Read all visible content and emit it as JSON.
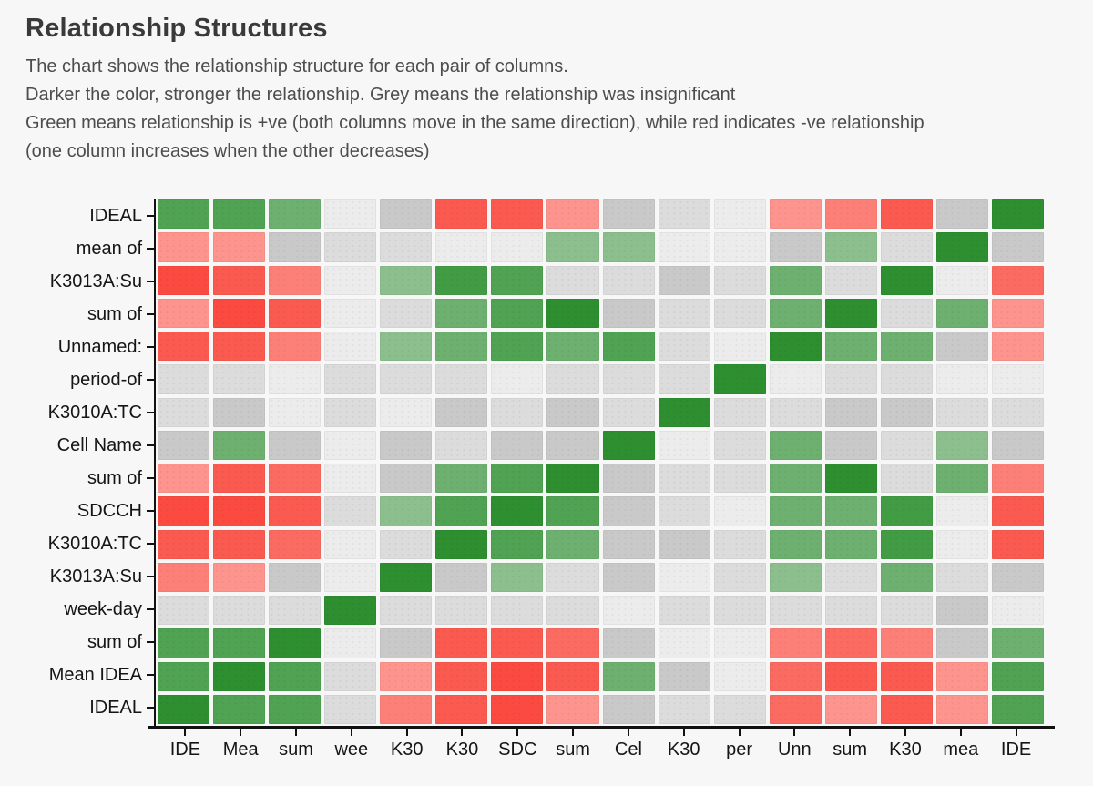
{
  "title": "Relationship Structures",
  "description_lines": [
    "The chart shows the relationship structure for each pair of columns.",
    "Darker the color, stronger the relationship. Grey means the relationship was insignificant",
    "Green means relationship is +ve (both columns move in the same direction), while red indicates -ve relationship",
    "(one column increases when the other decreases)"
  ],
  "chart_data": {
    "type": "heatmap",
    "title": "Relationship Structures",
    "rows": [
      "IDEAL",
      "mean of",
      "K3013A:Su",
      "sum of",
      "Unnamed:",
      "period-of",
      "K3010A:TC",
      "Cell Name",
      "sum of",
      "SDCCH",
      "K3010A:TC",
      "K3013A:Su",
      "week-day",
      "sum of",
      "Mean IDEA",
      "IDEAL"
    ],
    "columns": [
      "IDE",
      "Mea",
      "sum",
      "wee",
      "K30",
      "K30",
      "SDC",
      "sum",
      "Cel",
      "K30",
      "per",
      "Unn",
      "sum",
      "K30",
      "mea",
      "IDE"
    ],
    "legend": {
      "green": "positive relationship (stronger = darker)",
      "red": "negative relationship (stronger = darker)",
      "grey": "insignificant relationship"
    },
    "palette": {
      "g5": "#2e8f31",
      "g4": "#429c44",
      "g3": "#4fa352",
      "g2": "#6db06f",
      "g1": "#8cbf8d",
      "n0": "#ececec",
      "n1": "#dcdcdc",
      "n2": "#c9c9c9",
      "r1": "#fd948d",
      "r2": "#fc8078",
      "r3": "#fb6b61",
      "r4": "#fb5a50",
      "r5": "#fb4a40"
    },
    "cells": [
      [
        "g3",
        "g3",
        "g2",
        "n0",
        "n2",
        "r4",
        "r4",
        "r1",
        "n2",
        "n1",
        "n0",
        "r1",
        "r2",
        "r4",
        "n2",
        "g5"
      ],
      [
        "r1",
        "r1",
        "n2",
        "n1",
        "n1",
        "n0",
        "n0",
        "g1",
        "g1",
        "n0",
        "n0",
        "n2",
        "g1",
        "n1",
        "g5",
        "n2"
      ],
      [
        "r5",
        "r4",
        "r2",
        "n0",
        "g1",
        "g4",
        "g3",
        "n1",
        "n1",
        "n2",
        "n1",
        "g2",
        "n1",
        "g5",
        "n0",
        "r3"
      ],
      [
        "r1",
        "r5",
        "r4",
        "n0",
        "n1",
        "g2",
        "g3",
        "g5",
        "n2",
        "n1",
        "n1",
        "g2",
        "g5",
        "n1",
        "g2",
        "r1"
      ],
      [
        "r4",
        "r4",
        "r2",
        "n0",
        "g1",
        "g2",
        "g3",
        "g2",
        "g3",
        "n1",
        "n0",
        "g5",
        "g2",
        "g2",
        "n2",
        "r1"
      ],
      [
        "n1",
        "n1",
        "n0",
        "n1",
        "n1",
        "n1",
        "n0",
        "n1",
        "n1",
        "n1",
        "g5",
        "n0",
        "n1",
        "n1",
        "n0",
        "n0"
      ],
      [
        "n1",
        "n2",
        "n0",
        "n1",
        "n0",
        "n2",
        "n1",
        "n2",
        "n1",
        "g5",
        "n1",
        "n1",
        "n2",
        "n2",
        "n1",
        "n1"
      ],
      [
        "n2",
        "g2",
        "n2",
        "n0",
        "n2",
        "n1",
        "n2",
        "n2",
        "g5",
        "n0",
        "n1",
        "g2",
        "n2",
        "n1",
        "g1",
        "n2"
      ],
      [
        "r1",
        "r4",
        "r3",
        "n0",
        "n2",
        "g2",
        "g3",
        "g5",
        "n2",
        "n1",
        "n1",
        "g2",
        "g5",
        "n1",
        "g2",
        "r2"
      ],
      [
        "r5",
        "r5",
        "r4",
        "n1",
        "g1",
        "g3",
        "g5",
        "g3",
        "n2",
        "n1",
        "n0",
        "g2",
        "g2",
        "g4",
        "n0",
        "r4"
      ],
      [
        "r4",
        "r4",
        "r3",
        "n0",
        "n1",
        "g5",
        "g3",
        "g2",
        "n2",
        "n2",
        "n1",
        "g2",
        "g2",
        "g4",
        "n0",
        "r4"
      ],
      [
        "r2",
        "r1",
        "n2",
        "n0",
        "g5",
        "n2",
        "g1",
        "n1",
        "n2",
        "n0",
        "n1",
        "g1",
        "n1",
        "g2",
        "n1",
        "n2"
      ],
      [
        "n1",
        "n1",
        "n1",
        "g5",
        "n1",
        "n1",
        "n1",
        "n1",
        "n0",
        "n1",
        "n1",
        "n1",
        "n1",
        "n1",
        "n2",
        "n0"
      ],
      [
        "g3",
        "g3",
        "g5",
        "n0",
        "n2",
        "r4",
        "r4",
        "r3",
        "n2",
        "n0",
        "n0",
        "r2",
        "r3",
        "r2",
        "n2",
        "g2"
      ],
      [
        "g3",
        "g5",
        "g3",
        "n1",
        "r1",
        "r4",
        "r5",
        "r4",
        "g2",
        "n2",
        "n0",
        "r3",
        "r4",
        "r4",
        "r1",
        "g3"
      ],
      [
        "g5",
        "g3",
        "g3",
        "n1",
        "r2",
        "r4",
        "r5",
        "r1",
        "n2",
        "n1",
        "n1",
        "r3",
        "r1",
        "r4",
        "r1",
        "g3"
      ]
    ]
  }
}
